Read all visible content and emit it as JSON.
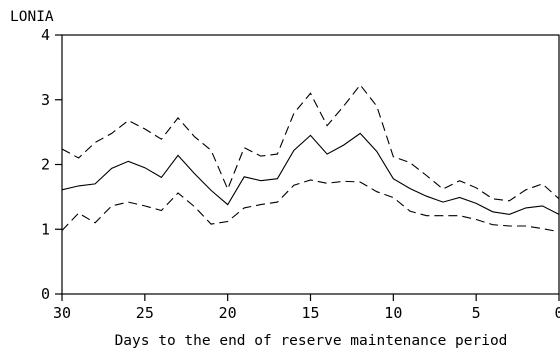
{
  "chart_data": {
    "type": "line",
    "title": "",
    "ylabel": "LONIA",
    "xlabel": "Days to the end of reserve maintenance period",
    "xlim": [
      30,
      0
    ],
    "ylim": [
      0,
      4
    ],
    "xticks": [
      30,
      25,
      20,
      15,
      10,
      5,
      0
    ],
    "yticks": [
      0,
      1,
      2,
      3,
      4
    ],
    "grid": false,
    "x": [
      30,
      29,
      28,
      27,
      26,
      25,
      24,
      23,
      22,
      21,
      20,
      19,
      18,
      17,
      16,
      15,
      14,
      13,
      12,
      11,
      10,
      9,
      8,
      7,
      6,
      5,
      4,
      3,
      2,
      1,
      0
    ],
    "series": [
      {
        "style": "solid",
        "values": [
          1.61,
          1.67,
          1.7,
          1.94,
          2.05,
          1.95,
          1.8,
          2.14,
          1.86,
          1.6,
          1.38,
          1.81,
          1.75,
          1.78,
          2.22,
          2.45,
          2.16,
          2.3,
          2.48,
          2.2,
          1.78,
          1.63,
          1.51,
          1.42,
          1.49,
          1.4,
          1.27,
          1.23,
          1.33,
          1.36,
          1.23
        ]
      },
      {
        "style": "dashed",
        "values": [
          2.24,
          2.1,
          2.34,
          2.48,
          2.68,
          2.55,
          2.39,
          2.72,
          2.43,
          2.22,
          1.62,
          2.26,
          2.13,
          2.16,
          2.79,
          3.1,
          2.6,
          2.9,
          3.23,
          2.9,
          2.12,
          2.03,
          1.83,
          1.62,
          1.75,
          1.64,
          1.47,
          1.44,
          1.61,
          1.7,
          1.47
        ]
      },
      {
        "style": "dashed",
        "values": [
          0.98,
          1.25,
          1.1,
          1.36,
          1.42,
          1.36,
          1.29,
          1.56,
          1.35,
          1.08,
          1.12,
          1.33,
          1.38,
          1.42,
          1.68,
          1.76,
          1.71,
          1.74,
          1.73,
          1.58,
          1.49,
          1.28,
          1.21,
          1.21,
          1.21,
          1.15,
          1.07,
          1.05,
          1.05,
          1.01,
          0.96
        ]
      }
    ]
  }
}
